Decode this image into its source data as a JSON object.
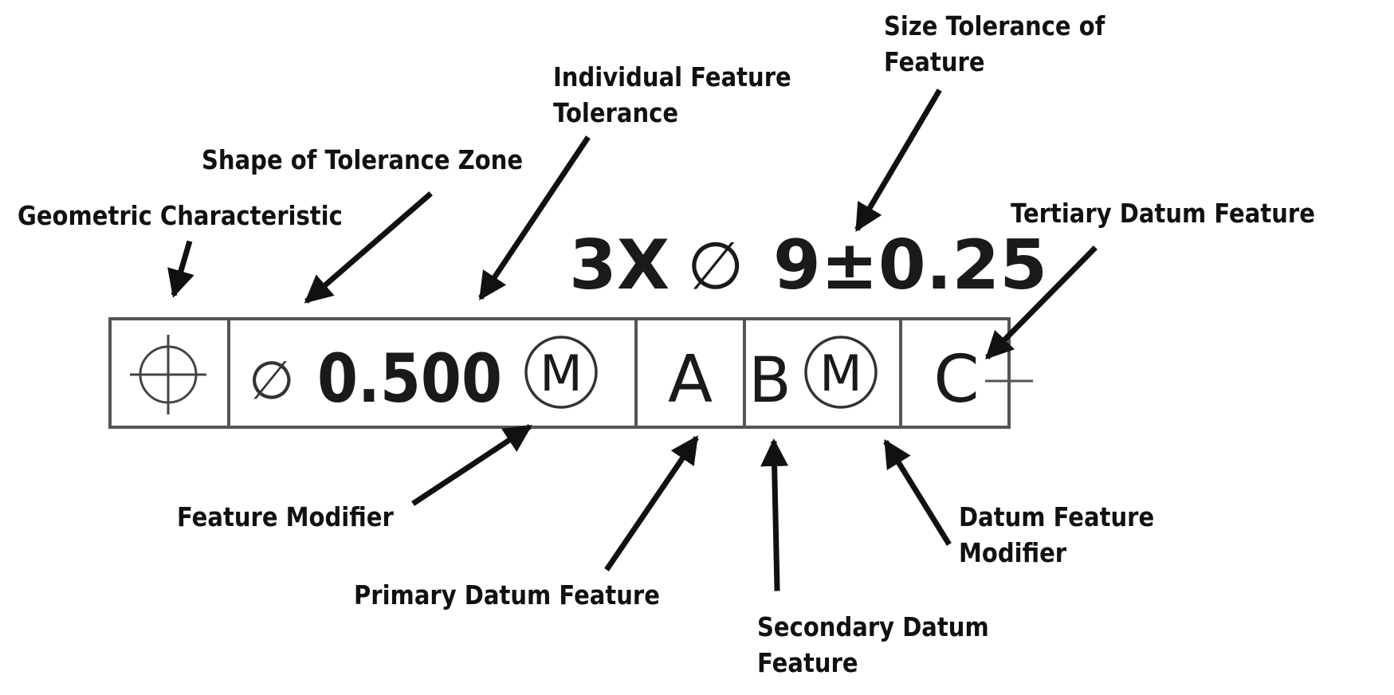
{
  "callouts": {
    "geometric_characteristic": "Geometric Characteristic",
    "shape_of_tolerance_zone": "Shape of Tolerance Zone",
    "individual_feature_tolerance": [
      "Individual Feature",
      "Tolerance"
    ],
    "size_tolerance_of_feature": [
      "Size Tolerance of",
      "Feature"
    ],
    "tertiary_datum_feature": "Tertiary Datum Feature",
    "feature_modifier": "Feature Modifier",
    "primary_datum_feature": "Primary Datum Feature",
    "secondary_datum_feature": [
      "Secondary Datum",
      "Feature"
    ],
    "datum_feature_modifier": [
      "Datum Feature",
      "Modifier"
    ]
  },
  "size_dimension": {
    "quantity": "3X",
    "diameter_symbol": "∅",
    "value": "9±0.25"
  },
  "feature_control_frame": {
    "characteristic_icon": "position-icon",
    "zone_shape_symbol": "∅",
    "tolerance_value": "0.500",
    "tolerance_modifier": "M",
    "primary_datum": "A",
    "secondary_datum": "B",
    "secondary_modifier": "M",
    "tertiary_datum": "C"
  },
  "colors": {
    "ink": "#111111",
    "frame": "#555555"
  }
}
